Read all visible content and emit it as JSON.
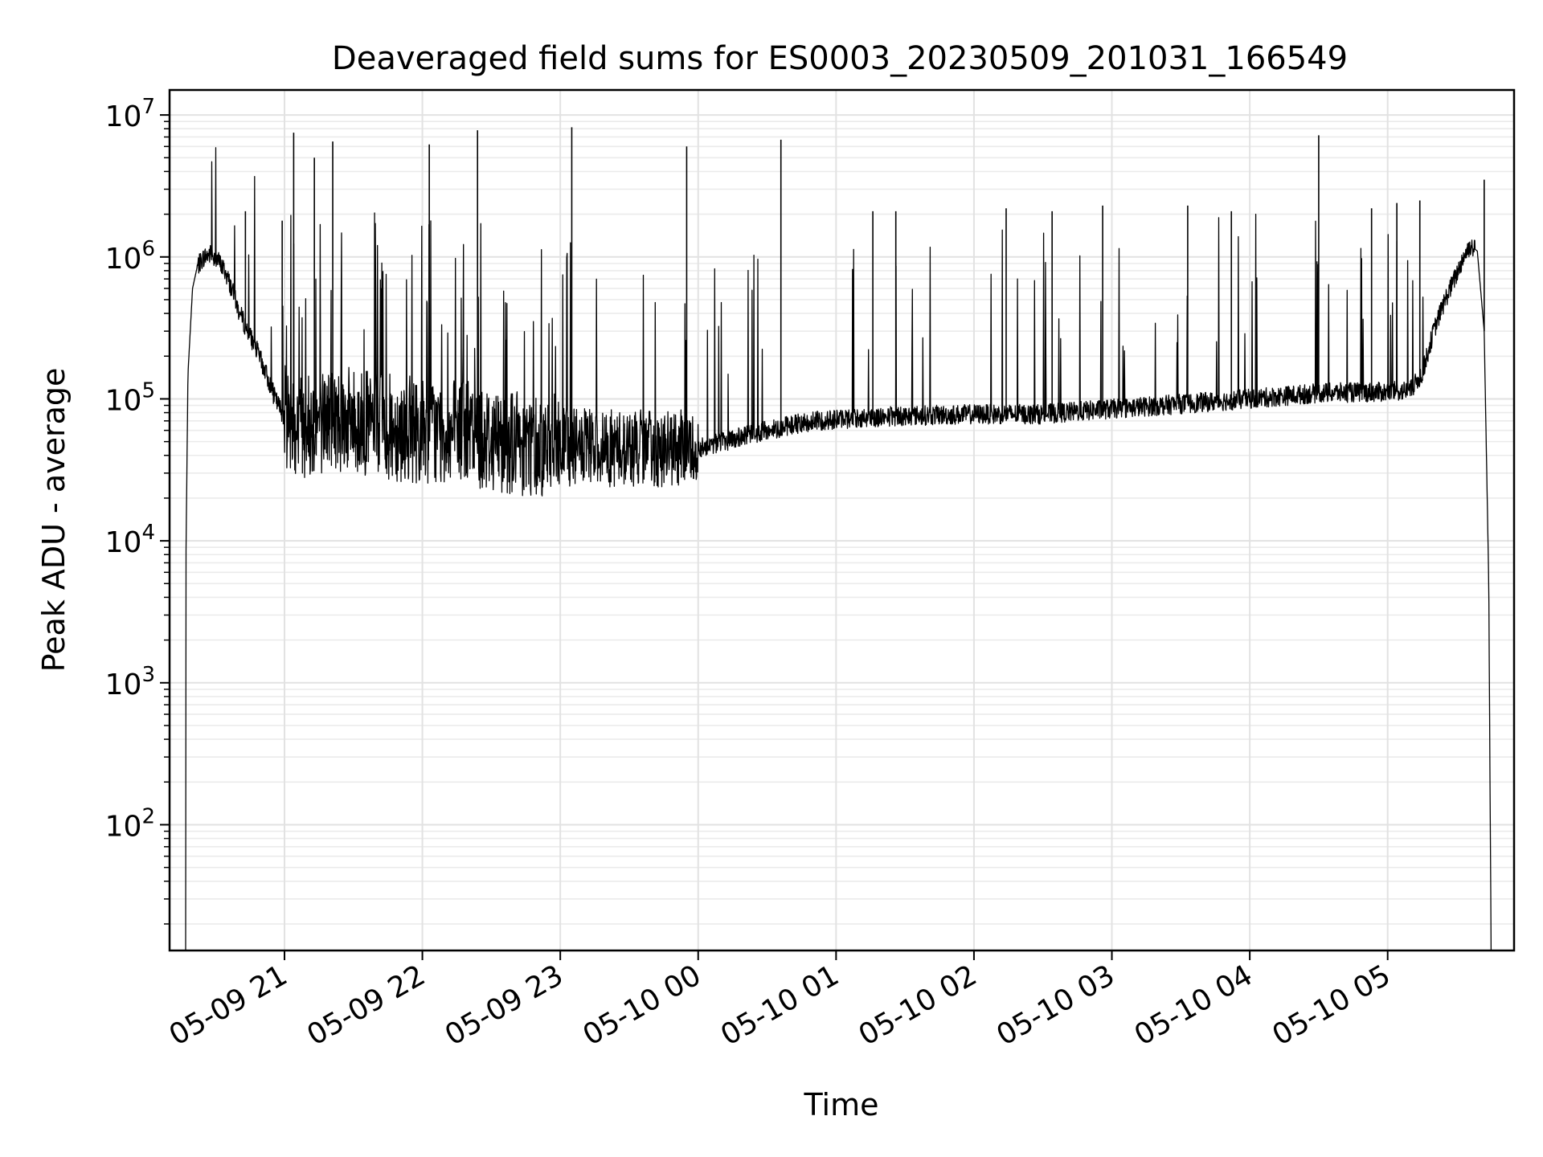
{
  "chart_data": {
    "type": "line",
    "title": "Deaveraged field sums for ES0003_20230509_201031_166549",
    "xlabel": "Time",
    "ylabel": "Peak ADU - average",
    "y_scale": "log",
    "grid": true,
    "legend": "none",
    "xlim": [
      "2023-05-09 20:10",
      "2023-05-10 05:55"
    ],
    "ylim": [
      13,
      15000000
    ],
    "x_ticks": [
      "2023-05-09 21:00",
      "2023-05-09 22:00",
      "2023-05-09 23:00",
      "2023-05-10 00:00",
      "2023-05-10 01:00",
      "2023-05-10 02:00",
      "2023-05-10 03:00",
      "2023-05-10 04:00",
      "2023-05-10 05:00"
    ],
    "x_tick_labels": [
      "05-09 21",
      "05-09 22",
      "05-09 23",
      "05-10 00",
      "05-10 01",
      "05-10 02",
      "05-10 03",
      "05-10 04",
      "05-10 05"
    ],
    "y_ticks": [
      100,
      1000,
      10000,
      100000,
      1000000,
      10000000
    ],
    "y_tick_labels": [
      {
        "base": "10",
        "exp": "2"
      },
      {
        "base": "10",
        "exp": "3"
      },
      {
        "base": "10",
        "exp": "4"
      },
      {
        "base": "10",
        "exp": "5"
      },
      {
        "base": "10",
        "exp": "6"
      },
      {
        "base": "10",
        "exp": "7"
      }
    ],
    "series": [
      {
        "color": "#000000",
        "points": [
          [
            "2023-05-09 20:17",
            13
          ],
          [
            "2023-05-09 20:17",
            5000
          ],
          [
            "2023-05-09 20:18",
            150000
          ],
          [
            "2023-05-09 20:20",
            600000
          ],
          [
            "2023-05-09 20:22",
            850000
          ],
          [
            "2023-05-09 20:25",
            1000000
          ],
          [
            "2023-05-09 20:28",
            1050000
          ],
          [
            "2023-05-09 20:31",
            950000
          ],
          [
            "2023-05-09 20:34",
            800000
          ],
          [
            "2023-05-09 20:37",
            600000
          ],
          [
            "2023-05-09 20:40",
            420000
          ],
          [
            "2023-05-09 20:44",
            300000
          ],
          [
            "2023-05-09 20:48",
            220000
          ],
          [
            "2023-05-09 20:52",
            150000
          ],
          [
            "2023-05-09 20:56",
            100000
          ],
          [
            "2023-05-09 21:00",
            75000
          ],
          [
            "2023-05-09 21:10",
            65000
          ],
          [
            "2023-05-09 21:20",
            75000
          ],
          [
            "2023-05-09 21:30",
            70000
          ],
          [
            "2023-05-09 21:40",
            65000
          ],
          [
            "2023-05-09 21:50",
            62000
          ],
          [
            "2023-05-09 22:00",
            60000
          ],
          [
            "2023-05-09 22:10",
            58000
          ],
          [
            "2023-05-09 22:20",
            56000
          ],
          [
            "2023-05-09 22:30",
            53000
          ],
          [
            "2023-05-09 22:40",
            50000
          ],
          [
            "2023-05-09 22:50",
            48000
          ],
          [
            "2023-05-09 23:00",
            46000
          ],
          [
            "2023-05-09 23:15",
            45000
          ],
          [
            "2023-05-09 23:30",
            45000
          ],
          [
            "2023-05-09 23:45",
            44000
          ],
          [
            "2023-05-10 00:00",
            45000
          ],
          [
            "2023-05-10 00:15",
            52000
          ],
          [
            "2023-05-10 00:30",
            60000
          ],
          [
            "2023-05-10 00:45",
            68000
          ],
          [
            "2023-05-10 01:00",
            72000
          ],
          [
            "2023-05-10 01:30",
            76000
          ],
          [
            "2023-05-10 02:00",
            78000
          ],
          [
            "2023-05-10 02:30",
            78000
          ],
          [
            "2023-05-10 03:00",
            85000
          ],
          [
            "2023-05-10 03:30",
            92000
          ],
          [
            "2023-05-10 04:00",
            100000
          ],
          [
            "2023-05-10 04:30",
            110000
          ],
          [
            "2023-05-10 05:00",
            112000
          ],
          [
            "2023-05-10 05:10",
            115000
          ],
          [
            "2023-05-10 05:15",
            150000
          ],
          [
            "2023-05-10 05:20",
            300000
          ],
          [
            "2023-05-10 05:25",
            500000
          ],
          [
            "2023-05-10 05:30",
            750000
          ],
          [
            "2023-05-10 05:33",
            1000000
          ],
          [
            "2023-05-10 05:36",
            1200000
          ],
          [
            "2023-05-10 05:39",
            1100000
          ],
          [
            "2023-05-10 05:42",
            300000
          ],
          [
            "2023-05-10 05:44",
            5000
          ],
          [
            "2023-05-10 05:45",
            13
          ]
        ],
        "spikes": [
          [
            "2023-05-09 21:04",
            7500000
          ],
          [
            "2023-05-09 21:13",
            5000000
          ],
          [
            "2023-05-09 21:21",
            6500000
          ],
          [
            "2023-05-09 22:03",
            6200000
          ],
          [
            "2023-05-09 22:24",
            7800000
          ],
          [
            "2023-05-09 23:05",
            8200000
          ],
          [
            "2023-05-09 23:55",
            6000000
          ],
          [
            "2023-05-10 00:36",
            6700000
          ],
          [
            "2023-05-10 04:30",
            7200000
          ],
          [
            "2023-05-10 05:42",
            3500000
          ],
          [
            "2023-05-09 20:43",
            2100000
          ],
          [
            "2023-05-09 20:59",
            1800000
          ],
          [
            "2023-05-10 01:16",
            2100000
          ],
          [
            "2023-05-10 01:26",
            2100000
          ],
          [
            "2023-05-10 02:14",
            2200000
          ],
          [
            "2023-05-10 02:34",
            2100000
          ],
          [
            "2023-05-10 02:56",
            2300000
          ],
          [
            "2023-05-10 03:33",
            2300000
          ],
          [
            "2023-05-10 03:52",
            2100000
          ],
          [
            "2023-05-10 04:53",
            2200000
          ],
          [
            "2023-05-10 05:04",
            2400000
          ],
          [
            "2023-05-10 05:14",
            2500000
          ]
        ]
      }
    ]
  }
}
